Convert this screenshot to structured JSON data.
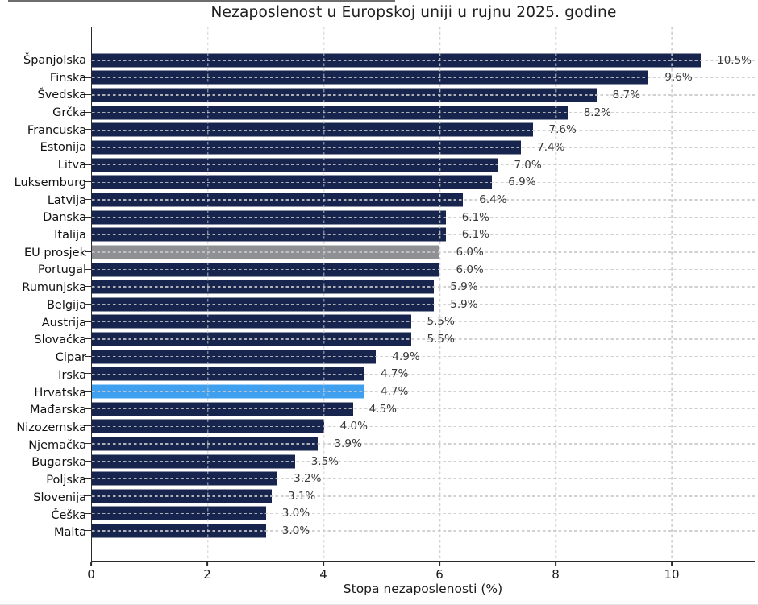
{
  "chart_data": {
    "type": "bar",
    "orientation": "horizontal",
    "title": "Nezaposlenost u Europskoj uniji u rujnu 2025. godine",
    "xlabel": "Stopa nezaposlenosti (%)",
    "xlim": [
      0,
      11.43
    ],
    "xticks": [
      0,
      2,
      4,
      6,
      8,
      10
    ],
    "grid": {
      "style": "dashed",
      "color": "#cccccc",
      "drawn_above_bars": true,
      "axes": "both"
    },
    "legend": "none",
    "categories": [
      "Španjolska",
      "Finska",
      "Švedska",
      "Grčka",
      "Francuska",
      "Estonija",
      "Litva",
      "Luksemburg",
      "Latvija",
      "Danska",
      "Italija",
      "EU prosjek",
      "Portugal",
      "Rumunjska",
      "Belgija",
      "Austrija",
      "Slovačka",
      "Cipar",
      "Irska",
      "Hrvatska",
      "Mađarska",
      "Nizozemska",
      "Njemačka",
      "Bugarska",
      "Poljska",
      "Slovenija",
      "Češka",
      "Malta"
    ],
    "values": [
      10.5,
      9.6,
      8.7,
      8.2,
      7.6,
      7.4,
      7.0,
      6.9,
      6.4,
      6.1,
      6.1,
      6.0,
      6.0,
      5.9,
      5.9,
      5.5,
      5.5,
      4.9,
      4.7,
      4.7,
      4.5,
      4.0,
      3.9,
      3.5,
      3.2,
      3.1,
      3.0,
      3.0
    ],
    "value_labels": [
      "10.5%",
      "9.6%",
      "8.7%",
      "8.2%",
      "7.6%",
      "7.4%",
      "7.0%",
      "6.9%",
      "6.4%",
      "6.1%",
      "6.1%",
      "6.0%",
      "6.0%",
      "5.9%",
      "5.9%",
      "5.5%",
      "5.5%",
      "4.9%",
      "4.7%",
      "4.7%",
      "4.5%",
      "4.0%",
      "3.9%",
      "3.5%",
      "3.2%",
      "3.1%",
      "3.0%",
      "3.0%"
    ],
    "colors": {
      "default_bar": "#17254E",
      "eu_average_bar": "#8F9093",
      "highlight_bar": "#3FA0F0",
      "axis": "#2b2b2b",
      "value_label_text": "#3a3a3a",
      "tick_label_text": "#1a1a1a"
    },
    "eu_average_index": 11,
    "highlight_index": 19,
    "highlight_category": "Hrvatska"
  }
}
